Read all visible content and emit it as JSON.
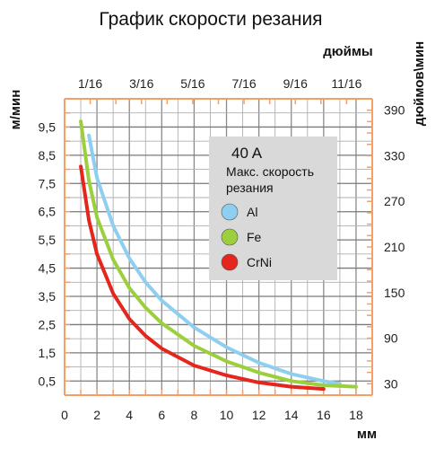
{
  "chart_data": {
    "type": "line",
    "title": "График скорости резания",
    "xlabel": "мм",
    "ylabel": "м/мин",
    "x2label": "дюймы",
    "y2label": "дюймов\\мин",
    "xlim": [
      0,
      19
    ],
    "ylim": [
      0,
      10.5
    ],
    "x_ticks": [
      "0",
      "2",
      "4",
      "6",
      "8",
      "10",
      "12",
      "14",
      "16",
      "18"
    ],
    "y_ticks": [
      "0,5",
      "1,5",
      "2,5",
      "3,5",
      "4,5",
      "5,5",
      "6,5",
      "7,5",
      "8,5",
      "9,5"
    ],
    "x2_ticks": [
      "1/16",
      "3/16",
      "5/16",
      "7/16",
      "9/16",
      "11/16"
    ],
    "y2_ticks": [
      "30",
      "90",
      "150",
      "210",
      "270",
      "330",
      "390"
    ],
    "grid": true,
    "legend": {
      "placement": "top-right",
      "title": "40 A",
      "subtitle": [
        "Макс. скорость",
        "резания"
      ]
    },
    "series": [
      {
        "name": "Al",
        "color": "#8ecfef",
        "x": [
          1.5,
          2,
          3,
          4,
          5,
          6,
          8,
          10,
          12,
          14,
          16,
          17
        ],
        "y": [
          9.2,
          7.7,
          6.0,
          4.85,
          4.0,
          3.35,
          2.4,
          1.7,
          1.15,
          0.75,
          0.5,
          0.4
        ]
      },
      {
        "name": "Fe",
        "color": "#9ccf3c",
        "x": [
          1,
          1.5,
          2,
          3,
          4,
          5,
          6,
          8,
          10,
          12,
          14,
          16,
          18
        ],
        "y": [
          9.7,
          7.6,
          6.3,
          4.8,
          3.8,
          3.1,
          2.55,
          1.75,
          1.2,
          0.8,
          0.5,
          0.35,
          0.3
        ]
      },
      {
        "name": "CrNi",
        "color": "#e5261c",
        "x": [
          1,
          1.5,
          2,
          3,
          4,
          5,
          6,
          8,
          10,
          12,
          14,
          16
        ],
        "y": [
          8.1,
          6.2,
          5.0,
          3.6,
          2.7,
          2.1,
          1.65,
          1.05,
          0.7,
          0.45,
          0.3,
          0.22
        ]
      }
    ]
  }
}
